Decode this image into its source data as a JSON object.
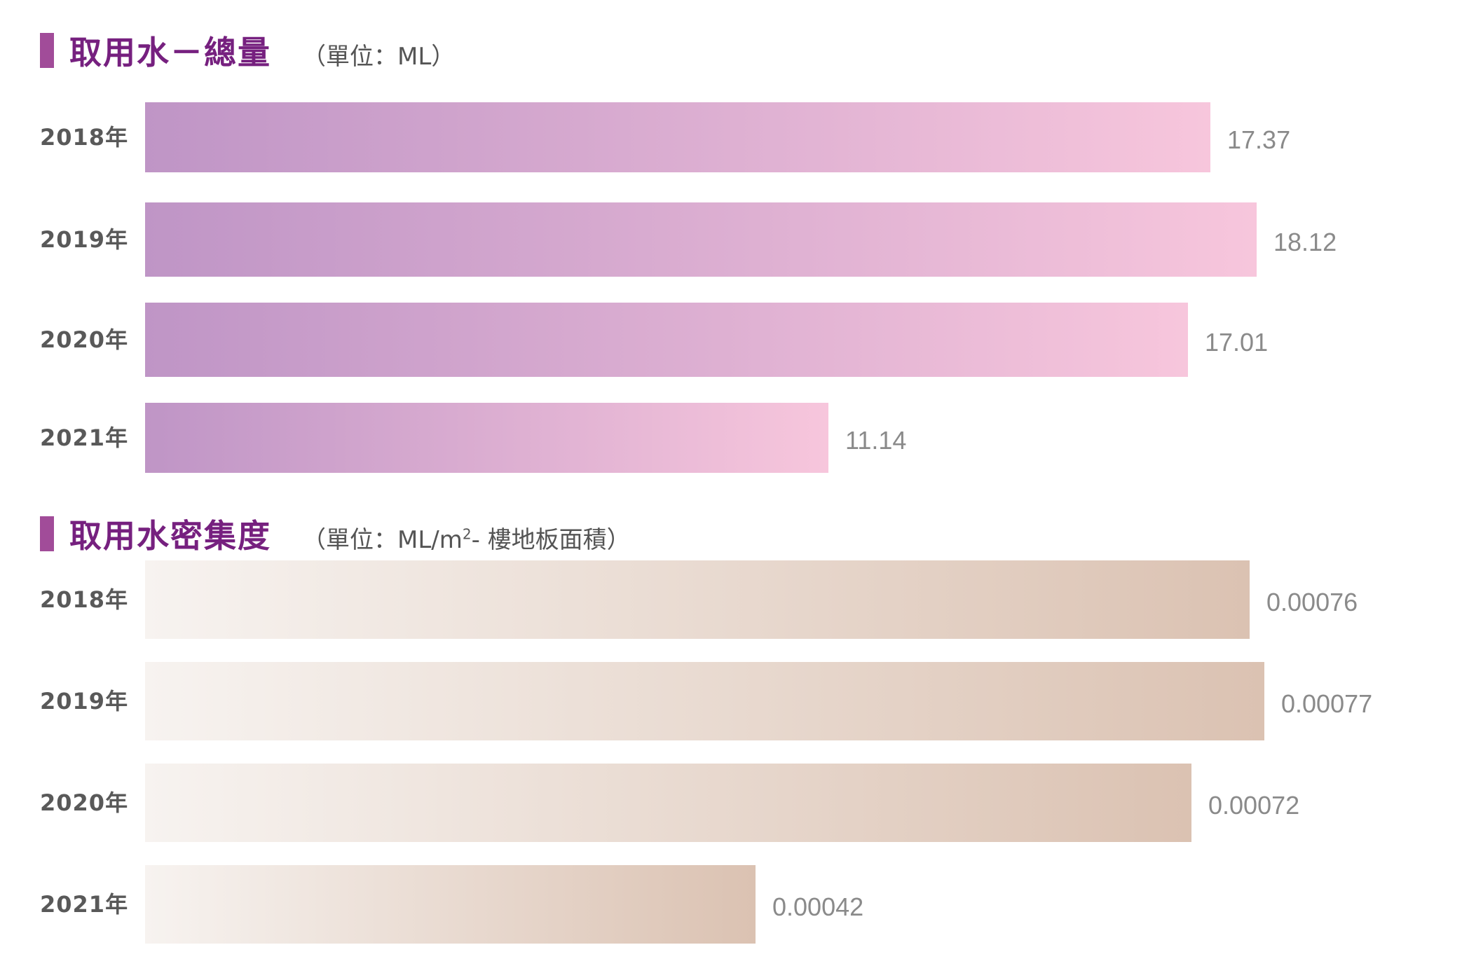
{
  "chart_data": [
    {
      "type": "bar",
      "orientation": "horizontal",
      "title": "取用水－總量",
      "unit": "（單位：ML）",
      "categories": [
        "2018年",
        "2019年",
        "2020年",
        "2021年"
      ],
      "values": [
        17.37,
        18.12,
        17.01,
        11.14
      ],
      "value_labels": [
        "17.37",
        "18.12",
        "17.01",
        "11.14"
      ],
      "xlim": [
        0,
        19.2
      ],
      "grid": false,
      "legend": "none",
      "colors": {
        "title": "#76207f",
        "marker": "#a14c99",
        "bar_start": "#bf95c6",
        "bar_end": "#f7c6dc"
      }
    },
    {
      "type": "bar",
      "orientation": "horizontal",
      "title": "取用水密集度",
      "unit_prefix": "（單位：ML/m",
      "unit_sup": "2",
      "unit_suffix": "- 樓地板面積）",
      "categories": [
        "2018年",
        "2019年",
        "2020年",
        "2021年"
      ],
      "values": [
        0.00076,
        0.00077,
        0.00072,
        0.00042
      ],
      "value_labels": [
        "0.00076",
        "0.00077",
        "0.00072",
        "0.00042"
      ],
      "xlim": [
        0,
        0.00081
      ],
      "grid": false,
      "legend": "none",
      "colors": {
        "title": "#76207f",
        "marker": "#a14c99",
        "bar_start": "#f7f3f0",
        "bar_end": "#dbc2b2"
      }
    }
  ]
}
